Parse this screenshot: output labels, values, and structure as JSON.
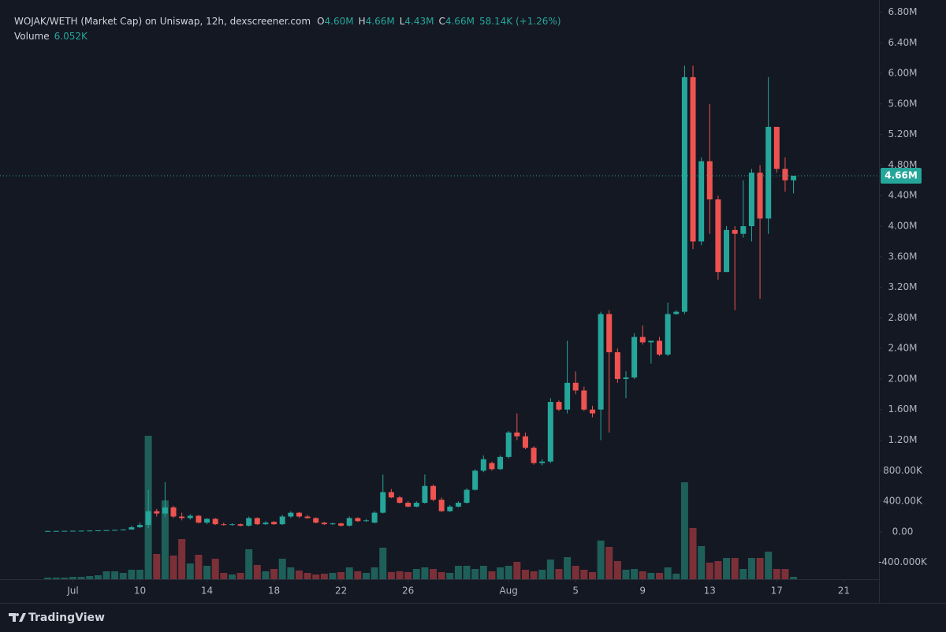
{
  "chart_data": {
    "type": "candlestick",
    "legend": {
      "title": "WOJAK/WETH (Market Cap) on Uniswap, 12h, dexscreener.com",
      "ohlc": [
        {
          "key": "O",
          "value": "4.60M"
        },
        {
          "key": "H",
          "value": "4.66M"
        },
        {
          "key": "L",
          "value": "4.43M"
        },
        {
          "key": "C",
          "value": "4.66M"
        }
      ],
      "change": "58.14K (+1.26%)",
      "volume_name": "Volume",
      "volume_value": "6.052K"
    },
    "open": [
      10000,
      11000,
      12000,
      13000,
      14000,
      15000,
      17000,
      19000,
      22000,
      25000,
      30000,
      60000,
      90000,
      270000,
      240000,
      320000,
      200000,
      180000,
      210000,
      120000,
      170000,
      100000,
      90000,
      100000,
      80000,
      180000,
      100000,
      130000,
      100000,
      200000,
      250000,
      200000,
      180000,
      120000,
      100000,
      110000,
      80000,
      180000,
      140000,
      120000,
      250000,
      520000,
      450000,
      380000,
      330000,
      380000,
      600000,
      420000,
      270000,
      330000,
      380000,
      550000,
      800000,
      900000,
      820000,
      980000,
      1300000,
      1250000,
      1100000,
      900000,
      920000,
      1700000,
      1600000,
      1950000,
      1850000,
      1600000,
      1600000,
      2850000,
      2350000,
      2000000,
      2020000,
      2550000,
      2480000,
      2500000,
      2320000,
      2850000,
      2880000,
      5950000,
      3800000,
      4850000,
      4350000,
      3400000,
      3950000,
      3900000,
      4000000,
      4700000,
      4100000,
      5300000,
      4750000,
      4600000
    ],
    "high": [
      12000,
      13000,
      14000,
      15000,
      16000,
      18000,
      20000,
      24000,
      28000,
      35000,
      80000,
      120000,
      550000,
      300000,
      650000,
      340000,
      250000,
      230000,
      220000,
      180000,
      180000,
      120000,
      110000,
      110000,
      200000,
      190000,
      140000,
      140000,
      220000,
      270000,
      260000,
      220000,
      190000,
      130000,
      120000,
      120000,
      200000,
      190000,
      170000,
      270000,
      750000,
      560000,
      470000,
      400000,
      400000,
      750000,
      620000,
      450000,
      350000,
      400000,
      570000,
      820000,
      1000000,
      920000,
      1000000,
      1320000,
      1550000,
      1300000,
      1120000,
      950000,
      1750000,
      1720000,
      2500000,
      2100000,
      1900000,
      1650000,
      2880000,
      2900000,
      2400000,
      2100000,
      2600000,
      2700000,
      2500000,
      2550000,
      3000000,
      2900000,
      6100000,
      6100000,
      4900000,
      5600000,
      4400000,
      4000000,
      4000000,
      4600000,
      4750000,
      4800000,
      5950000,
      5300000,
      4900000,
      4660000
    ],
    "low": [
      8000,
      10000,
      11000,
      12000,
      13000,
      14000,
      16000,
      18000,
      20000,
      23000,
      28000,
      50000,
      50000,
      200000,
      200000,
      180000,
      150000,
      160000,
      110000,
      100000,
      90000,
      80000,
      80000,
      70000,
      70000,
      90000,
      90000,
      90000,
      90000,
      180000,
      180000,
      170000,
      110000,
      90000,
      90000,
      70000,
      70000,
      130000,
      130000,
      110000,
      240000,
      440000,
      370000,
      320000,
      320000,
      370000,
      400000,
      260000,
      260000,
      320000,
      370000,
      540000,
      780000,
      800000,
      810000,
      960000,
      1200000,
      1080000,
      880000,
      870000,
      900000,
      1580000,
      1550000,
      1800000,
      1580000,
      1500000,
      1200000,
      1300000,
      1950000,
      1750000,
      2000000,
      2450000,
      2200000,
      2300000,
      2300000,
      2840000,
      2850000,
      3700000,
      3750000,
      3900000,
      3300000,
      3400000,
      2900000,
      3850000,
      3800000,
      3050000,
      3900000,
      4700000,
      4450000,
      4430000
    ],
    "close": [
      11000,
      12000,
      13000,
      14000,
      15000,
      17000,
      19000,
      22000,
      25000,
      30000,
      60000,
      90000,
      270000,
      240000,
      320000,
      200000,
      180000,
      210000,
      120000,
      170000,
      100000,
      90000,
      100000,
      80000,
      180000,
      100000,
      120000,
      100000,
      200000,
      250000,
      200000,
      180000,
      120000,
      100000,
      110000,
      80000,
      180000,
      140000,
      150000,
      250000,
      520000,
      450000,
      380000,
      330000,
      380000,
      600000,
      420000,
      270000,
      330000,
      380000,
      550000,
      800000,
      950000,
      820000,
      980000,
      1300000,
      1250000,
      1100000,
      900000,
      920000,
      1700000,
      1600000,
      1950000,
      1850000,
      1600000,
      1550000,
      2850000,
      2350000,
      2000000,
      2020000,
      2550000,
      2480000,
      2500000,
      2320000,
      2850000,
      2880000,
      5950000,
      3800000,
      4850000,
      4350000,
      3400000,
      3950000,
      3900000,
      4000000,
      4700000,
      4100000,
      5300000,
      4750000,
      4600000,
      4660000
    ],
    "volume": [
      4000,
      4000,
      4000,
      6000,
      6000,
      8000,
      10000,
      20000,
      20000,
      16000,
      24000,
      24000,
      364000,
      64000,
      200000,
      60000,
      102000,
      40000,
      62000,
      34000,
      52000,
      16000,
      12000,
      16000,
      76000,
      36000,
      20000,
      26000,
      52000,
      30000,
      22000,
      16000,
      12000,
      14000,
      16000,
      18000,
      30000,
      20000,
      16000,
      30000,
      80000,
      18000,
      20000,
      18000,
      26000,
      30000,
      26000,
      18000,
      16000,
      34000,
      34000,
      26000,
      34000,
      20000,
      30000,
      34000,
      44000,
      24000,
      20000,
      24000,
      50000,
      26000,
      56000,
      34000,
      24000,
      18000,
      98000,
      82000,
      46000,
      24000,
      26000,
      20000,
      16000,
      16000,
      30000,
      14000,
      246000,
      130000,
      84000,
      42000,
      46000,
      54000,
      54000,
      26000,
      54000,
      54000,
      70000,
      26000,
      26000,
      6052
    ],
    "volume_lim": [
      0,
      400000
    ],
    "up_color": "#26a69a",
    "down_color": "#ef5350",
    "volume_up_color": "#1f5f59",
    "volume_down_color": "#7b3038",
    "last_price": {
      "value": 4660000,
      "label": "4.66M"
    },
    "ylim": [
      -620000,
      6960000
    ],
    "yticks": [
      {
        "value": -400000,
        "label": "-400.000K"
      },
      {
        "value": 0,
        "label": "0.00"
      },
      {
        "value": 400000,
        "label": "400.00K"
      },
      {
        "value": 800000,
        "label": "800.00K"
      },
      {
        "value": 1200000,
        "label": "1.20M"
      },
      {
        "value": 1600000,
        "label": "1.60M"
      },
      {
        "value": 2000000,
        "label": "2.00M"
      },
      {
        "value": 2400000,
        "label": "2.40M"
      },
      {
        "value": 2800000,
        "label": "2.80M"
      },
      {
        "value": 3200000,
        "label": "3.20M"
      },
      {
        "value": 3600000,
        "label": "3.60M"
      },
      {
        "value": 4000000,
        "label": "4.00M"
      },
      {
        "value": 4400000,
        "label": "4.40M"
      },
      {
        "value": 4800000,
        "label": "4.80M"
      },
      {
        "value": 5200000,
        "label": "5.20M"
      },
      {
        "value": 5600000,
        "label": "5.60M"
      },
      {
        "value": 6000000,
        "label": "6.00M"
      },
      {
        "value": 6400000,
        "label": "6.40M"
      },
      {
        "value": 6800000,
        "label": "6.80M"
      }
    ],
    "xlim": [
      -5.7,
      99.2
    ],
    "xticks": [
      {
        "value": 3,
        "label": "Jul"
      },
      {
        "value": 11,
        "label": "10"
      },
      {
        "value": 19,
        "label": "14"
      },
      {
        "value": 27,
        "label": "18"
      },
      {
        "value": 35,
        "label": "22"
      },
      {
        "value": 43,
        "label": "26"
      },
      {
        "value": 55,
        "label": "Aug"
      },
      {
        "value": 63,
        "label": "5"
      },
      {
        "value": 71,
        "label": "9"
      },
      {
        "value": 79,
        "label": "13"
      },
      {
        "value": 87,
        "label": "17"
      },
      {
        "value": 95,
        "label": "21"
      }
    ],
    "grid": false
  },
  "footer": {
    "brand": "TradingView"
  }
}
